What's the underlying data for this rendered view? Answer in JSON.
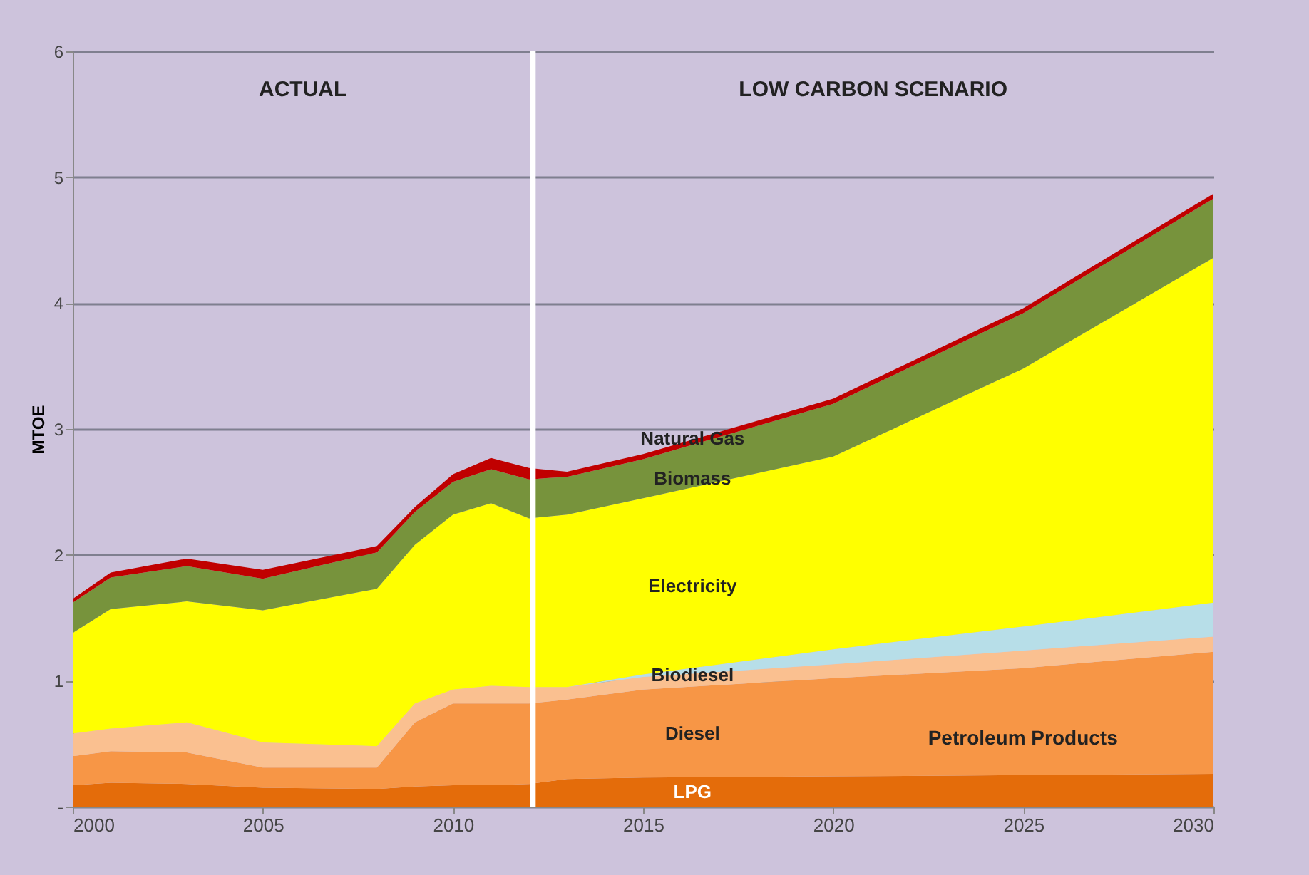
{
  "chart_data": {
    "type": "area",
    "stacked": true,
    "ylabel": "MTOE",
    "x": [
      2000,
      2001,
      2003,
      2005,
      2008,
      2009,
      2010,
      2011,
      2012,
      2013,
      2015,
      2020,
      2025,
      2030
    ],
    "series": [
      {
        "name": "LPG",
        "color": "#e46c0a",
        "values": [
          0.17,
          0.19,
          0.18,
          0.15,
          0.14,
          0.16,
          0.17,
          0.17,
          0.18,
          0.22,
          0.23,
          0.24,
          0.25,
          0.26
        ]
      },
      {
        "name": "Diesel",
        "color": "#f79646",
        "values": [
          0.23,
          0.25,
          0.25,
          0.16,
          0.17,
          0.51,
          0.65,
          0.65,
          0.64,
          0.63,
          0.7,
          0.78,
          0.85,
          0.97
        ]
      },
      {
        "color": "#fac090",
        "values": [
          0.18,
          0.18,
          0.24,
          0.2,
          0.17,
          0.15,
          0.11,
          0.14,
          0.13,
          0.1,
          0.1,
          0.11,
          0.14,
          0.12
        ]
      },
      {
        "name": "Biodiesel",
        "color": "#b7dee8",
        "values": [
          0,
          0,
          0,
          0,
          0,
          0,
          0,
          0,
          0,
          0,
          0.02,
          0.12,
          0.19,
          0.27
        ]
      },
      {
        "name": "Electricity",
        "color": "#ffff00",
        "values": [
          0.8,
          0.95,
          0.96,
          1.05,
          1.25,
          1.26,
          1.39,
          1.45,
          1.34,
          1.37,
          1.4,
          1.53,
          2.05,
          2.74
        ]
      },
      {
        "name": "Biomass",
        "color": "#77933c",
        "values": [
          0.24,
          0.25,
          0.28,
          0.25,
          0.29,
          0.26,
          0.26,
          0.27,
          0.31,
          0.3,
          0.31,
          0.42,
          0.44,
          0.47
        ]
      },
      {
        "name": "Natural Gas",
        "color": "#c00000",
        "values": [
          0.03,
          0.04,
          0.06,
          0.07,
          0.05,
          0.04,
          0.06,
          0.09,
          0.09,
          0.04,
          0.04,
          0.04,
          0.04,
          0.04
        ]
      }
    ],
    "xlim": [
      2000,
      2030
    ],
    "xticks": [
      2000,
      2005,
      2010,
      2015,
      2020,
      2025,
      2030
    ],
    "ylim": [
      0,
      6
    ],
    "yticks": [
      {
        "value": 0,
        "label": "-"
      },
      1,
      2,
      3,
      4,
      5,
      6
    ],
    "grid": "y",
    "legend": false,
    "ref_lines": [
      {
        "axis": "x",
        "value": 2012.1,
        "color": "#ffffff"
      }
    ],
    "annotations": [
      "ACTUAL",
      "LOW CARBON SCENARIO",
      "Petroleum Products"
    ]
  }
}
